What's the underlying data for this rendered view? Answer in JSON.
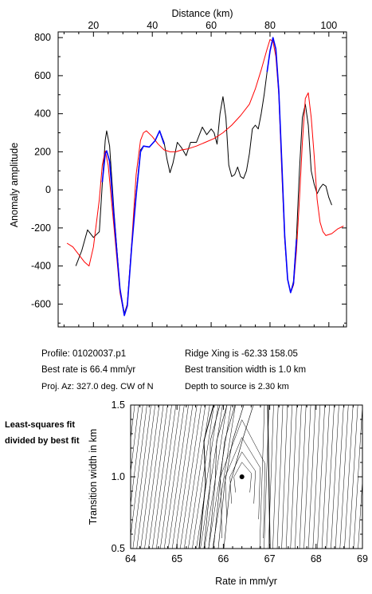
{
  "info": {
    "profile": "Profile: 01020037.p1",
    "best_rate": "Best rate is 66.4 mm/yr",
    "proj_az": "Proj. Az: 327.0 deg. CW of N",
    "ridge_xing": "Ridge Xing is -62.33 158.05",
    "best_width": "Best transition width is 1.0 km",
    "depth": "Depth to source is   2.30 km"
  },
  "side_label": "Least-squares fit divided by best fit",
  "chart_data": [
    {
      "type": "line",
      "xlabel": "Distance (km)",
      "ylabel": "Anomaly amplitude",
      "xlim": [
        8,
        106
      ],
      "ylim": [
        -720,
        830
      ],
      "x_ticks": [
        20,
        40,
        60,
        80,
        100
      ],
      "y_ticks": [
        -600,
        -400,
        -200,
        0,
        200,
        400,
        600,
        800
      ],
      "grid": false,
      "series": [
        {
          "color": "#000000",
          "points": [
            [
              14,
              -400
            ],
            [
              16,
              -320
            ],
            [
              18,
              -210
            ],
            [
              20,
              -250
            ],
            [
              22,
              -220
            ],
            [
              23,
              30
            ],
            [
              24,
              260
            ],
            [
              24.5,
              310
            ],
            [
              25.5,
              230
            ],
            [
              27,
              -120
            ],
            [
              29,
              -520
            ],
            [
              30.5,
              -650
            ],
            [
              31.5,
              -600
            ],
            [
              33,
              -290
            ],
            [
              34.5,
              -20
            ],
            [
              36,
              210
            ],
            [
              37,
              230
            ],
            [
              39,
              225
            ],
            [
              41,
              260
            ],
            [
              42.5,
              310
            ],
            [
              44,
              250
            ],
            [
              45,
              160
            ],
            [
              46,
              90
            ],
            [
              47,
              140
            ],
            [
              48.5,
              250
            ],
            [
              50,
              220
            ],
            [
              51.5,
              180
            ],
            [
              53,
              250
            ],
            [
              55,
              250
            ],
            [
              57,
              330
            ],
            [
              58.5,
              290
            ],
            [
              60,
              320
            ],
            [
              61,
              300
            ],
            [
              62,
              240
            ],
            [
              63,
              400
            ],
            [
              64,
              490
            ],
            [
              65,
              380
            ],
            [
              66,
              130
            ],
            [
              67,
              70
            ],
            [
              68,
              80
            ],
            [
              69,
              120
            ],
            [
              70,
              70
            ],
            [
              71,
              60
            ],
            [
              72,
              100
            ],
            [
              73,
              190
            ],
            [
              74,
              320
            ],
            [
              75,
              340
            ],
            [
              76,
              320
            ],
            [
              77,
              400
            ],
            [
              78,
              500
            ],
            [
              79,
              620
            ],
            [
              80,
              730
            ],
            [
              81,
              800
            ],
            [
              82,
              740
            ],
            [
              83,
              520
            ],
            [
              84,
              150
            ],
            [
              85,
              -250
            ],
            [
              86,
              -470
            ],
            [
              87,
              -540
            ],
            [
              88,
              -480
            ],
            [
              89,
              -250
            ],
            [
              90,
              100
            ],
            [
              91,
              380
            ],
            [
              92,
              450
            ],
            [
              93,
              340
            ],
            [
              94,
              100
            ],
            [
              95,
              30
            ],
            [
              96,
              -20
            ],
            [
              97,
              10
            ],
            [
              98,
              30
            ],
            [
              99,
              20
            ],
            [
              100,
              -40
            ],
            [
              101,
              -80
            ]
          ]
        },
        {
          "color": "#0000ff",
          "points": [
            [
              23,
              40
            ],
            [
              24,
              190
            ],
            [
              24.5,
              205
            ],
            [
              25.5,
              150
            ],
            [
              27,
              -150
            ],
            [
              29,
              -520
            ],
            [
              30.5,
              -660
            ],
            [
              31.5,
              -610
            ],
            [
              33,
              -300
            ],
            [
              34.5,
              -30
            ],
            [
              36,
              200
            ],
            [
              37,
              230
            ],
            [
              39,
              225
            ],
            [
              41,
              260
            ],
            [
              42.5,
              310
            ],
            [
              44,
              240
            ],
            [
              79,
              620
            ],
            [
              80,
              730
            ],
            [
              81,
              800
            ],
            [
              82,
              740
            ],
            [
              83,
              520
            ],
            [
              84,
              150
            ],
            [
              85,
              -240
            ],
            [
              86,
              -470
            ],
            [
              87,
              -540
            ],
            [
              88,
              -490
            ],
            [
              89,
              -260
            ]
          ]
        },
        {
          "color": "#ff0000",
          "points": [
            [
              11,
              -280
            ],
            [
              13,
              -300
            ],
            [
              15,
              -340
            ],
            [
              17,
              -380
            ],
            [
              18.5,
              -400
            ],
            [
              20,
              -300
            ],
            [
              22,
              -50
            ],
            [
              23,
              130
            ],
            [
              24,
              205
            ],
            [
              25,
              130
            ],
            [
              27,
              -200
            ],
            [
              29,
              -540
            ],
            [
              30.5,
              -660
            ],
            [
              31.5,
              -600
            ],
            [
              33,
              -280
            ],
            [
              34.5,
              80
            ],
            [
              36,
              260
            ],
            [
              37,
              300
            ],
            [
              38,
              310
            ],
            [
              40,
              280
            ],
            [
              42,
              240
            ],
            [
              44,
              210
            ],
            [
              46,
              200
            ],
            [
              48,
              200
            ],
            [
              50,
              210
            ],
            [
              52,
              215
            ],
            [
              55,
              230
            ],
            [
              58,
              250
            ],
            [
              61,
              270
            ],
            [
              64,
              300
            ],
            [
              67,
              340
            ],
            [
              70,
              390
            ],
            [
              73,
              450
            ],
            [
              75,
              530
            ],
            [
              77,
              630
            ],
            [
              79,
              740
            ],
            [
              80,
              790
            ],
            [
              81,
              780
            ],
            [
              82,
              700
            ],
            [
              83,
              500
            ],
            [
              84,
              100
            ],
            [
              85,
              -260
            ],
            [
              86,
              -470
            ],
            [
              87,
              -540
            ],
            [
              88,
              -500
            ],
            [
              89,
              -320
            ],
            [
              90,
              -50
            ],
            [
              91,
              250
            ],
            [
              92,
              480
            ],
            [
              93,
              510
            ],
            [
              94,
              380
            ],
            [
              95,
              180
            ],
            [
              96,
              -50
            ],
            [
              97,
              -170
            ],
            [
              98,
              -220
            ],
            [
              99,
              -240
            ],
            [
              101,
              -230
            ],
            [
              103,
              -205
            ],
            [
              105,
              -190
            ]
          ]
        }
      ]
    },
    {
      "type": "contour",
      "xlabel": "Rate in mm/yr",
      "ylabel": "Transition width in km",
      "xlim": [
        64,
        69
      ],
      "ylim": [
        0.5,
        1.5
      ],
      "x_ticks": [
        64,
        65,
        66,
        67,
        68,
        69
      ],
      "y_ticks": [
        0.5,
        1.0,
        1.5
      ],
      "best_fit": {
        "rate": 66.4,
        "width": 1.0
      }
    }
  ]
}
